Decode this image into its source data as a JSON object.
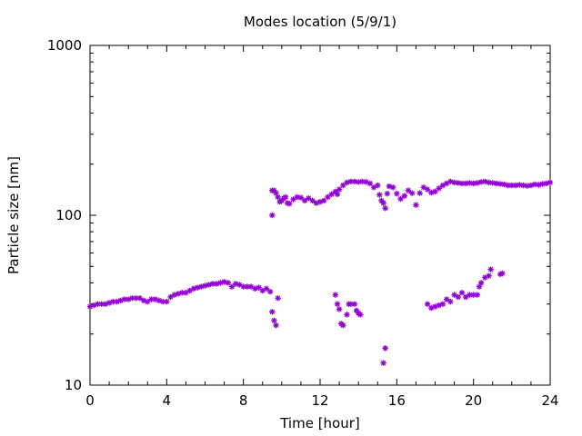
{
  "chart_data": {
    "type": "scatter",
    "title": "Modes location (5/9/1)",
    "xlabel": "Time [hour]",
    "ylabel": "Particle size [nm]",
    "xlim": [
      0,
      24
    ],
    "ylim": [
      10,
      1000
    ],
    "yscale": "log",
    "grid": false,
    "legend": "none",
    "marker": "asterisk",
    "color": "#9400d3",
    "x_ticks": [
      0,
      4,
      8,
      12,
      16,
      20,
      24
    ],
    "x_tick_labels": [
      "0",
      "4",
      "8",
      "12",
      "16",
      "20",
      "24"
    ],
    "y_ticks": [
      10,
      100,
      1000
    ],
    "y_tick_labels": [
      "10",
      "100",
      "1000"
    ],
    "series": [
      {
        "points": [
          [
            0.0,
            29
          ],
          [
            0.2,
            29.5
          ],
          [
            0.4,
            30
          ],
          [
            0.6,
            30
          ],
          [
            0.8,
            30
          ],
          [
            1.0,
            30.5
          ],
          [
            1.2,
            31
          ],
          [
            1.4,
            31
          ],
          [
            1.6,
            31.5
          ],
          [
            1.8,
            32
          ],
          [
            2.0,
            32
          ],
          [
            2.2,
            32.5
          ],
          [
            2.4,
            32.5
          ],
          [
            2.6,
            32.5
          ],
          [
            2.8,
            31.5
          ],
          [
            3.0,
            31
          ],
          [
            3.2,
            32
          ],
          [
            3.4,
            32
          ],
          [
            3.6,
            31.5
          ],
          [
            3.8,
            31
          ],
          [
            4.0,
            31
          ],
          [
            4.2,
            33
          ],
          [
            4.4,
            34
          ],
          [
            4.6,
            34.5
          ],
          [
            4.8,
            35
          ],
          [
            5.0,
            35
          ],
          [
            5.2,
            36
          ],
          [
            5.4,
            37
          ],
          [
            5.6,
            37.5
          ],
          [
            5.8,
            38
          ],
          [
            6.0,
            38.5
          ],
          [
            6.2,
            39
          ],
          [
            6.4,
            39.5
          ],
          [
            6.6,
            39.5
          ],
          [
            6.8,
            40
          ],
          [
            7.0,
            40.5
          ],
          [
            7.2,
            40
          ],
          [
            7.4,
            38
          ],
          [
            7.6,
            39.5
          ],
          [
            7.8,
            39
          ],
          [
            8.0,
            38
          ],
          [
            8.2,
            38
          ],
          [
            8.4,
            38
          ],
          [
            8.6,
            37
          ],
          [
            8.8,
            37.5
          ],
          [
            9.0,
            36
          ],
          [
            9.2,
            37
          ],
          [
            9.4,
            35.5
          ],
          [
            9.5,
            27
          ],
          [
            9.6,
            24
          ],
          [
            9.7,
            22.5
          ],
          [
            9.8,
            32.5
          ],
          [
            12.8,
            34
          ],
          [
            12.9,
            30
          ],
          [
            13.0,
            28
          ],
          [
            13.1,
            23
          ],
          [
            13.2,
            22.5
          ],
          [
            13.4,
            26
          ],
          [
            13.5,
            30
          ],
          [
            13.6,
            30
          ],
          [
            13.8,
            30
          ],
          [
            13.9,
            27.5
          ],
          [
            14.0,
            26.5
          ],
          [
            14.1,
            26
          ],
          [
            15.3,
            13.5
          ],
          [
            15.4,
            16.5
          ],
          [
            17.6,
            30
          ],
          [
            17.8,
            28.5
          ],
          [
            18.0,
            29
          ],
          [
            18.2,
            29.5
          ],
          [
            18.4,
            30
          ],
          [
            18.6,
            32
          ],
          [
            18.8,
            31
          ],
          [
            19.0,
            34
          ],
          [
            19.2,
            33
          ],
          [
            19.4,
            35
          ],
          [
            19.6,
            33
          ],
          [
            19.8,
            34
          ],
          [
            20.0,
            34
          ],
          [
            20.2,
            34
          ],
          [
            20.3,
            38
          ],
          [
            20.4,
            40
          ],
          [
            20.6,
            43
          ],
          [
            20.8,
            44
          ],
          [
            20.9,
            48
          ],
          [
            21.4,
            45
          ],
          [
            21.5,
            45.5
          ],
          [
            9.5,
            100
          ],
          [
            9.5,
            140
          ],
          [
            9.6,
            140
          ],
          [
            9.7,
            135
          ],
          [
            9.8,
            128
          ],
          [
            9.9,
            120
          ],
          [
            10.0,
            122
          ],
          [
            10.1,
            126
          ],
          [
            10.2,
            128
          ],
          [
            10.3,
            118
          ],
          [
            10.4,
            117
          ],
          [
            10.6,
            124
          ],
          [
            10.8,
            128
          ],
          [
            11.0,
            127
          ],
          [
            11.2,
            122
          ],
          [
            11.4,
            126
          ],
          [
            11.6,
            122
          ],
          [
            11.8,
            118
          ],
          [
            12.0,
            120
          ],
          [
            12.2,
            122
          ],
          [
            12.4,
            128
          ],
          [
            12.6,
            133
          ],
          [
            12.8,
            138
          ],
          [
            12.9,
            133
          ],
          [
            13.0,
            142
          ],
          [
            13.2,
            150
          ],
          [
            13.4,
            156
          ],
          [
            13.6,
            158
          ],
          [
            13.8,
            158
          ],
          [
            14.0,
            157
          ],
          [
            14.2,
            158
          ],
          [
            14.4,
            157
          ],
          [
            14.6,
            154
          ],
          [
            14.8,
            146
          ],
          [
            15.0,
            150
          ],
          [
            15.1,
            132
          ],
          [
            15.2,
            122
          ],
          [
            15.3,
            118
          ],
          [
            15.4,
            110
          ],
          [
            15.5,
            134
          ],
          [
            15.6,
            148
          ],
          [
            15.8,
            146
          ],
          [
            16.0,
            134
          ],
          [
            16.2,
            125
          ],
          [
            16.4,
            130
          ],
          [
            16.6,
            140
          ],
          [
            16.8,
            135
          ],
          [
            17.0,
            115
          ],
          [
            17.2,
            135
          ],
          [
            17.4,
            146
          ],
          [
            17.6,
            142
          ],
          [
            17.8,
            136
          ],
          [
            18.0,
            138
          ],
          [
            18.2,
            144
          ],
          [
            18.4,
            150
          ],
          [
            18.6,
            154
          ],
          [
            18.8,
            158
          ],
          [
            19.0,
            156
          ],
          [
            19.2,
            155
          ],
          [
            19.4,
            154
          ],
          [
            19.6,
            154
          ],
          [
            19.8,
            155
          ],
          [
            20.0,
            154
          ],
          [
            20.2,
            155
          ],
          [
            20.4,
            157
          ],
          [
            20.6,
            158
          ],
          [
            20.8,
            156
          ],
          [
            21.0,
            155
          ],
          [
            21.2,
            154
          ],
          [
            21.4,
            153
          ],
          [
            21.6,
            152
          ],
          [
            21.8,
            150
          ],
          [
            22.0,
            150
          ],
          [
            22.2,
            150
          ],
          [
            22.4,
            151
          ],
          [
            22.6,
            150
          ],
          [
            22.8,
            149
          ],
          [
            23.0,
            150
          ],
          [
            23.2,
            152
          ],
          [
            23.4,
            151
          ],
          [
            23.6,
            153
          ],
          [
            23.8,
            154
          ],
          [
            24.0,
            156
          ]
        ]
      }
    ]
  }
}
